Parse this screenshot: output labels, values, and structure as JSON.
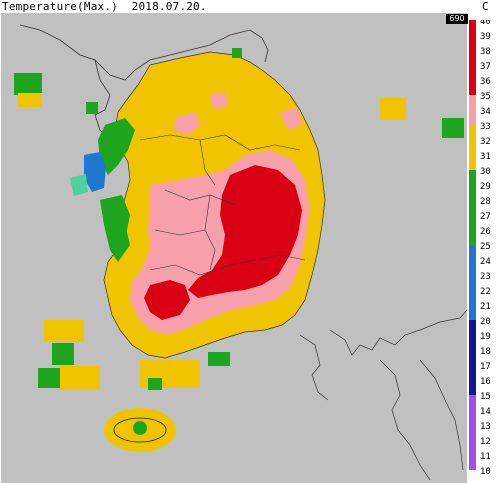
{
  "header": {
    "title": "Temperature(Max.)",
    "date": "2018.07.20.",
    "unit": "C",
    "badge": "690"
  },
  "legend": {
    "labels": [
      "40",
      "39",
      "38",
      "37",
      "36",
      "35",
      "34",
      "33",
      "32",
      "31",
      "30",
      "29",
      "28",
      "27",
      "26",
      "25",
      "24",
      "23",
      "22",
      "21",
      "20",
      "19",
      "18",
      "17",
      "16",
      "15",
      "14",
      "13",
      "12",
      "11",
      "10"
    ],
    "color_bands": [
      {
        "min": 35,
        "max": 40,
        "color": "#d80012",
        "name": "red"
      },
      {
        "min": 33,
        "max": 35,
        "color": "#f6a0ac",
        "name": "pink"
      },
      {
        "min": 30,
        "max": 33,
        "color": "#f0c400",
        "name": "yellow"
      },
      {
        "min": 25,
        "max": 30,
        "color": "#1ea51e",
        "name": "green"
      },
      {
        "min": 20,
        "max": 25,
        "color": "#1e78d2",
        "name": "blue"
      },
      {
        "min": 15,
        "max": 20,
        "color": "#141496",
        "name": "navy"
      },
      {
        "min": 10,
        "max": 15,
        "color": "#a050e6",
        "name": "purple"
      }
    ]
  },
  "map": {
    "background": "#c0c0c0",
    "region": "Korean Peninsula (South Korea)"
  }
}
